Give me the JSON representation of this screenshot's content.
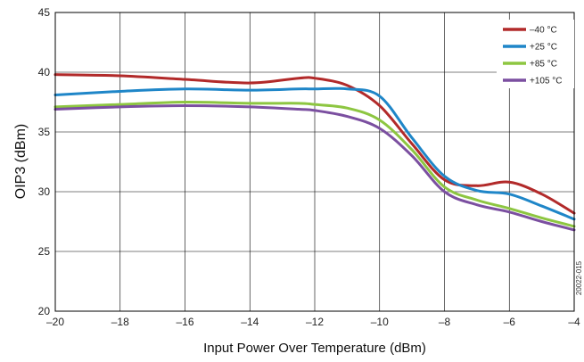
{
  "chart_data": {
    "type": "line",
    "title": "",
    "xlabel": "Input Power Over Temperature (dBm)",
    "ylabel": "OIP3 (dBm)",
    "xlim": [
      -20,
      -4
    ],
    "ylim": [
      20,
      45
    ],
    "x_ticks": [
      -20,
      -18,
      -16,
      -14,
      -12,
      -10,
      -8,
      -6,
      -4
    ],
    "x_tick_labels": [
      "–20",
      "–18",
      "–16",
      "–14",
      "–12",
      "–10",
      "–8",
      "–6",
      "–4"
    ],
    "y_ticks": [
      20,
      25,
      30,
      35,
      40,
      45
    ],
    "y_tick_labels": [
      "20",
      "25",
      "30",
      "35",
      "40",
      "45"
    ],
    "grid": true,
    "legend_position": "top-right",
    "figure_id": "20022-015",
    "x": [
      -20,
      -18,
      -16,
      -14,
      -12.5,
      -12,
      -11,
      -10,
      -9,
      -8,
      -7,
      -6,
      -5,
      -4
    ],
    "series": [
      {
        "name": "–40 °C",
        "color": "#b22a2a",
        "values": [
          39.8,
          39.7,
          39.4,
          39.1,
          39.5,
          39.5,
          38.9,
          37.2,
          34.0,
          31.0,
          30.5,
          30.8,
          29.8,
          28.2
        ]
      },
      {
        "name": "+25 °C",
        "color": "#1f86c8",
        "values": [
          38.1,
          38.4,
          38.6,
          38.5,
          38.6,
          38.6,
          38.6,
          38.0,
          34.5,
          31.3,
          30.1,
          29.8,
          28.8,
          27.7
        ]
      },
      {
        "name": "+85 °C",
        "color": "#8dc641",
        "values": [
          37.1,
          37.3,
          37.5,
          37.4,
          37.4,
          37.3,
          37.0,
          36.0,
          33.5,
          30.4,
          29.3,
          28.6,
          27.8,
          27.1
        ]
      },
      {
        "name": "+105 °C",
        "color": "#7b4fa0",
        "values": [
          36.9,
          37.1,
          37.2,
          37.1,
          36.9,
          36.8,
          36.3,
          35.3,
          33.0,
          30.0,
          28.9,
          28.3,
          27.5,
          26.8
        ]
      }
    ]
  }
}
